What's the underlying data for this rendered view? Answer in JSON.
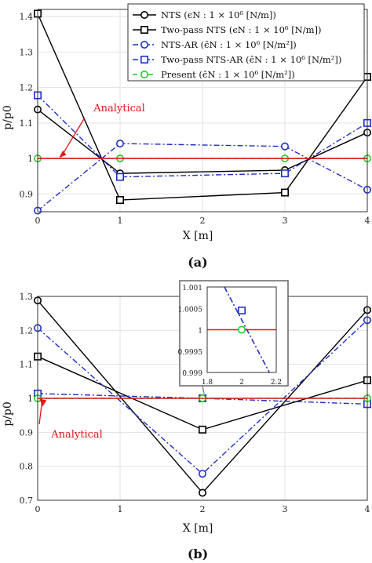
{
  "chart_data": [
    {
      "panel": "a",
      "caption": "(a)",
      "type": "line",
      "xlabel": "X [m]",
      "ylabel": "p/p0",
      "xlim": [
        0,
        4
      ],
      "ylim": [
        0.85,
        1.42
      ],
      "xticks": [
        "0",
        "1",
        "2",
        "3",
        "4"
      ],
      "yticks": [
        "0.9",
        "1",
        "1.1",
        "1.2",
        "1.3",
        "1.4"
      ],
      "grid": true,
      "legend_position": "top-right",
      "annotation": "Analytical",
      "series": [
        {
          "name": "NTS (ϵN : 1 × 10⁶ [N/m])",
          "color": "#000000",
          "marker": "circle",
          "dash": "solid",
          "x": [
            0,
            1,
            3,
            4
          ],
          "y": [
            1.138,
            0.958,
            0.967,
            1.073
          ]
        },
        {
          "name": "Two-pass NTS (ϵN : 1 × 10⁶ [N/m])",
          "color": "#000000",
          "marker": "square",
          "dash": "solid",
          "x": [
            0,
            1,
            3,
            4
          ],
          "y": [
            1.408,
            0.883,
            0.904,
            1.23
          ]
        },
        {
          "name": "NTS-AR (ϵ̂N : 1 × 10⁶ [N/m²])",
          "color": "#1f2fc7",
          "marker": "circle",
          "dash": "dashdot",
          "x": [
            0,
            1,
            3,
            4
          ],
          "y": [
            0.853,
            1.042,
            1.034,
            0.912
          ]
        },
        {
          "name": "Two-pass NTS-AR (ϵ̂N : 1 × 10⁶ [N/m²])",
          "color": "#1f2fc7",
          "marker": "square",
          "dash": "dashdot",
          "x": [
            0,
            1,
            3,
            4
          ],
          "y": [
            1.178,
            0.948,
            0.958,
            1.1
          ]
        },
        {
          "name": "Present (ϵ̂N : 1 × 10⁶ [N/m²])",
          "color": "#22cc22",
          "marker": "circle",
          "dash": "dashed",
          "x": [
            0,
            1,
            3,
            4
          ],
          "y": [
            1.0,
            1.0,
            1.0,
            1.0
          ]
        },
        {
          "name": "",
          "color": "#e0161b",
          "marker": "none",
          "dash": "solid",
          "x": [
            0,
            4
          ],
          "y": [
            1.0,
            1.0
          ]
        }
      ]
    },
    {
      "panel": "b",
      "caption": "(b)",
      "type": "line",
      "xlabel": "X [m]",
      "ylabel": "p/p0",
      "xlim": [
        0,
        4
      ],
      "ylim": [
        0.7,
        1.3
      ],
      "xticks": [
        "0",
        "1",
        "2",
        "3",
        "4"
      ],
      "yticks": [
        "0.7",
        "0.8",
        "0.9",
        "1",
        "1.1",
        "1.2",
        "1.3"
      ],
      "grid": true,
      "annotation": "Analytical",
      "series": [
        {
          "color": "#000000",
          "marker": "circle",
          "dash": "solid",
          "x": [
            0,
            2,
            4
          ],
          "y": [
            1.288,
            0.722,
            1.26
          ]
        },
        {
          "color": "#000000",
          "marker": "square",
          "dash": "solid",
          "x": [
            0,
            2,
            4
          ],
          "y": [
            1.123,
            0.908,
            1.053
          ]
        },
        {
          "color": "#1f2fc7",
          "marker": "circle",
          "dash": "dashdot",
          "x": [
            0,
            2,
            4
          ],
          "y": [
            1.207,
            0.778,
            1.23
          ]
        },
        {
          "color": "#1f2fc7",
          "marker": "square",
          "dash": "dashdot",
          "x": [
            0,
            2,
            4
          ],
          "y": [
            1.014,
            1.0,
            0.983
          ]
        },
        {
          "color": "#22cc22",
          "marker": "circle",
          "dash": "dashed",
          "x": [
            0,
            2,
            4
          ],
          "y": [
            1.0,
            1.0,
            1.0
          ]
        },
        {
          "color": "#e0161b",
          "marker": "none",
          "dash": "solid",
          "x": [
            0,
            4
          ],
          "y": [
            1.0,
            1.0
          ]
        }
      ],
      "inset": {
        "xlim": [
          1.8,
          2.2
        ],
        "ylim": [
          0.999,
          1.001
        ],
        "xticks": [
          "1.8",
          "2",
          "2.2"
        ],
        "yticks": [
          "0.999",
          "0.9995",
          "1",
          "1.0005",
          "1.001"
        ],
        "series": [
          {
            "color": "#1f2fc7",
            "marker": "none",
            "dash": "dashdot",
            "x": [
              1.9,
              2.16
            ],
            "y": [
              1.001,
              0.999
            ]
          },
          {
            "color": "#1f2fc7",
            "marker": "square",
            "dash": "none",
            "x": [
              2.0
            ],
            "y": [
              1.00045
            ]
          },
          {
            "color": "#e0161b",
            "marker": "none",
            "dash": "solid",
            "x": [
              1.8,
              2.2
            ],
            "y": [
              1.0,
              1.0
            ]
          },
          {
            "color": "#22cc22",
            "marker": "circle",
            "dash": "none",
            "x": [
              2.0
            ],
            "y": [
              1.0
            ]
          }
        ]
      }
    }
  ]
}
